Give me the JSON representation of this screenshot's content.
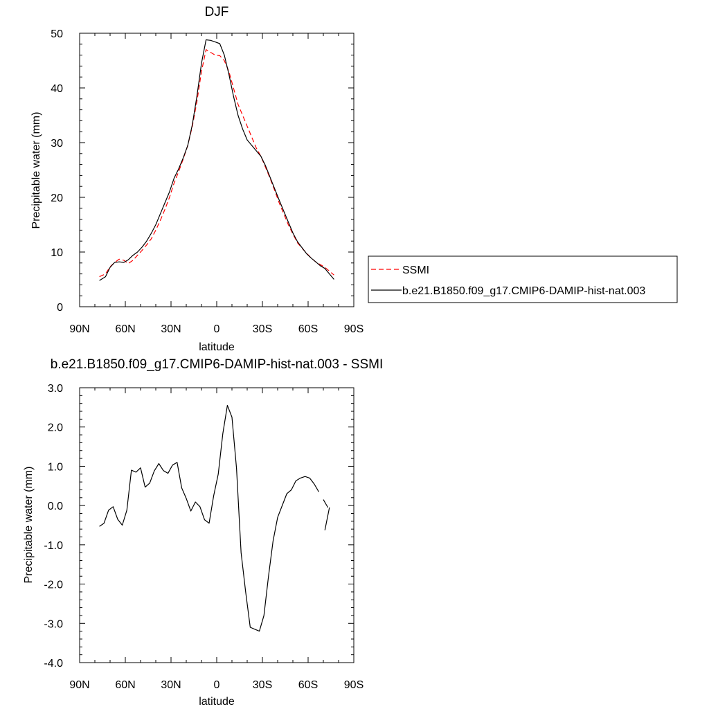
{
  "chart_data": [
    {
      "type": "line",
      "title": "DJF",
      "xlabel": "latitude",
      "ylabel": "Precipitable water (mm)",
      "xlim": [
        90,
        -90
      ],
      "ylim": [
        0,
        50
      ],
      "xticks": [
        90,
        60,
        30,
        0,
        -30,
        -60,
        -90
      ],
      "xtick_labels": [
        "90N",
        "60N",
        "30N",
        "0",
        "30S",
        "60S",
        "90S"
      ],
      "yticks": [
        0,
        10,
        20,
        30,
        40,
        50
      ],
      "ytick_labels": [
        "0",
        "10",
        "20",
        "30",
        "40",
        "50"
      ],
      "legend_position": "right",
      "series": [
        {
          "name": "SSMI",
          "color": "#ff0000",
          "style": "dashed",
          "x": [
            77,
            73,
            70,
            67,
            64,
            61,
            58,
            55,
            52,
            49,
            46,
            43,
            40,
            37,
            34,
            31,
            28,
            25,
            22,
            19,
            16,
            13,
            10,
            7,
            4,
            1,
            -2,
            -5,
            -8,
            -11,
            -14,
            -17,
            -20,
            -23,
            -26,
            -29,
            -32,
            -35,
            -38,
            -41,
            -44,
            -47,
            -50,
            -53,
            -56,
            -59,
            -62,
            -65,
            -68,
            -71,
            -74,
            -77
          ],
          "y": [
            5.5,
            6.0,
            7.3,
            8.1,
            8.7,
            8.5,
            7.9,
            8.5,
            9.4,
            10.3,
            11.3,
            12.4,
            14.0,
            15.8,
            17.8,
            20.0,
            22.6,
            24.7,
            27.0,
            29.5,
            33.0,
            37.5,
            43.0,
            47.0,
            46.5,
            46.0,
            45.9,
            45.0,
            43.0,
            40.0,
            37.0,
            35.0,
            33.0,
            31.0,
            29.0,
            27.5,
            25.5,
            23.5,
            21.3,
            19.0,
            17.0,
            15.0,
            13.3,
            11.7,
            10.7,
            9.8,
            8.9,
            8.2,
            7.7,
            7.2,
            6.5,
            5.8
          ]
        },
        {
          "name": "b.e21.B1850.f09_g17.CMIP6-DAMIP-hist-nat.003",
          "color": "#000000",
          "style": "solid",
          "x": [
            77,
            73,
            70,
            67,
            64,
            61,
            58,
            55,
            52,
            49,
            46,
            43,
            40,
            37,
            34,
            31,
            28,
            25,
            22,
            19,
            16,
            13,
            10,
            7,
            4,
            1,
            -2,
            -5,
            -8,
            -11,
            -14,
            -17,
            -20,
            -23,
            -26,
            -29,
            -32,
            -35,
            -38,
            -41,
            -44,
            -47,
            -50,
            -53,
            -56,
            -59,
            -62,
            -65,
            -68,
            -71,
            -74,
            -77
          ],
          "y": [
            4.8,
            5.5,
            7.2,
            8.1,
            8.2,
            8.1,
            8.6,
            9.4,
            10.0,
            10.9,
            12.0,
            13.4,
            15.0,
            17.0,
            19.0,
            21.0,
            23.5,
            25.2,
            27.2,
            29.5,
            33.3,
            38.5,
            44.5,
            48.8,
            48.7,
            48.4,
            48.1,
            46.0,
            42.5,
            38.5,
            35.0,
            32.5,
            30.5,
            29.5,
            28.5,
            27.5,
            25.8,
            23.7,
            21.6,
            19.5,
            17.5,
            15.5,
            13.5,
            11.9,
            10.8,
            9.7,
            8.9,
            8.2,
            7.5,
            7.0,
            6.0,
            5.0
          ]
        }
      ]
    },
    {
      "type": "line",
      "title": "b.e21.B1850.f09_g17.CMIP6-DAMIP-hist-nat.003 - SSMI",
      "xlabel": "latitude",
      "ylabel": "Precipitable water (mm)",
      "xlim": [
        90,
        -90
      ],
      "ylim": [
        -4.0,
        3.0
      ],
      "xticks": [
        90,
        60,
        30,
        0,
        -30,
        -60,
        -90
      ],
      "xtick_labels": [
        "90N",
        "60N",
        "30N",
        "0",
        "30S",
        "60S",
        "90S"
      ],
      "yticks": [
        -4,
        -3,
        -2,
        -1,
        0,
        1,
        2,
        3
      ],
      "ytick_labels": [
        "-4.0",
        "-3.0",
        "-2.0",
        "-1.0",
        "0.0",
        "1.0",
        "2.0",
        "3.0"
      ],
      "series": [
        {
          "name": "",
          "color": "#000000",
          "style": "solid",
          "segments": [
            {
              "x": [
                77,
                74,
                71,
                68,
                65,
                62,
                59,
                56,
                53,
                50,
                47,
                44,
                41,
                38,
                35,
                32,
                29,
                26,
                23,
                20,
                17,
                14,
                11,
                8,
                5,
                2,
                -1,
                -4,
                -7,
                -10,
                -13,
                -16,
                -19,
                -22,
                -25,
                -28,
                -31,
                -34,
                -37,
                -40,
                -43,
                -46,
                -49,
                -52,
                -55,
                -58,
                -61,
                -64,
                -67
              ],
              "y": [
                -0.53,
                -0.45,
                -0.12,
                -0.03,
                -0.35,
                -0.5,
                -0.12,
                0.9,
                0.85,
                0.96,
                0.47,
                0.57,
                0.88,
                1.07,
                0.89,
                0.82,
                1.03,
                1.1,
                0.45,
                0.18,
                -0.14,
                0.09,
                -0.03,
                -0.36,
                -0.45,
                0.25,
                0.8,
                1.83,
                2.55,
                2.25,
                0.95,
                -1.2,
                -2.2,
                -3.1,
                -3.15,
                -3.2,
                -2.8,
                -1.8,
                -0.9,
                -0.3,
                0.0,
                0.3,
                0.4,
                0.63,
                0.7,
                0.74,
                0.7,
                0.55,
                0.35
              ]
            },
            {
              "x": [
                -70,
                -73
              ],
              "y": [
                0.15,
                -0.05
              ]
            },
            {
              "x": [
                -71,
                -74
              ],
              "y": [
                -0.63,
                -0.05
              ]
            }
          ]
        }
      ]
    }
  ]
}
